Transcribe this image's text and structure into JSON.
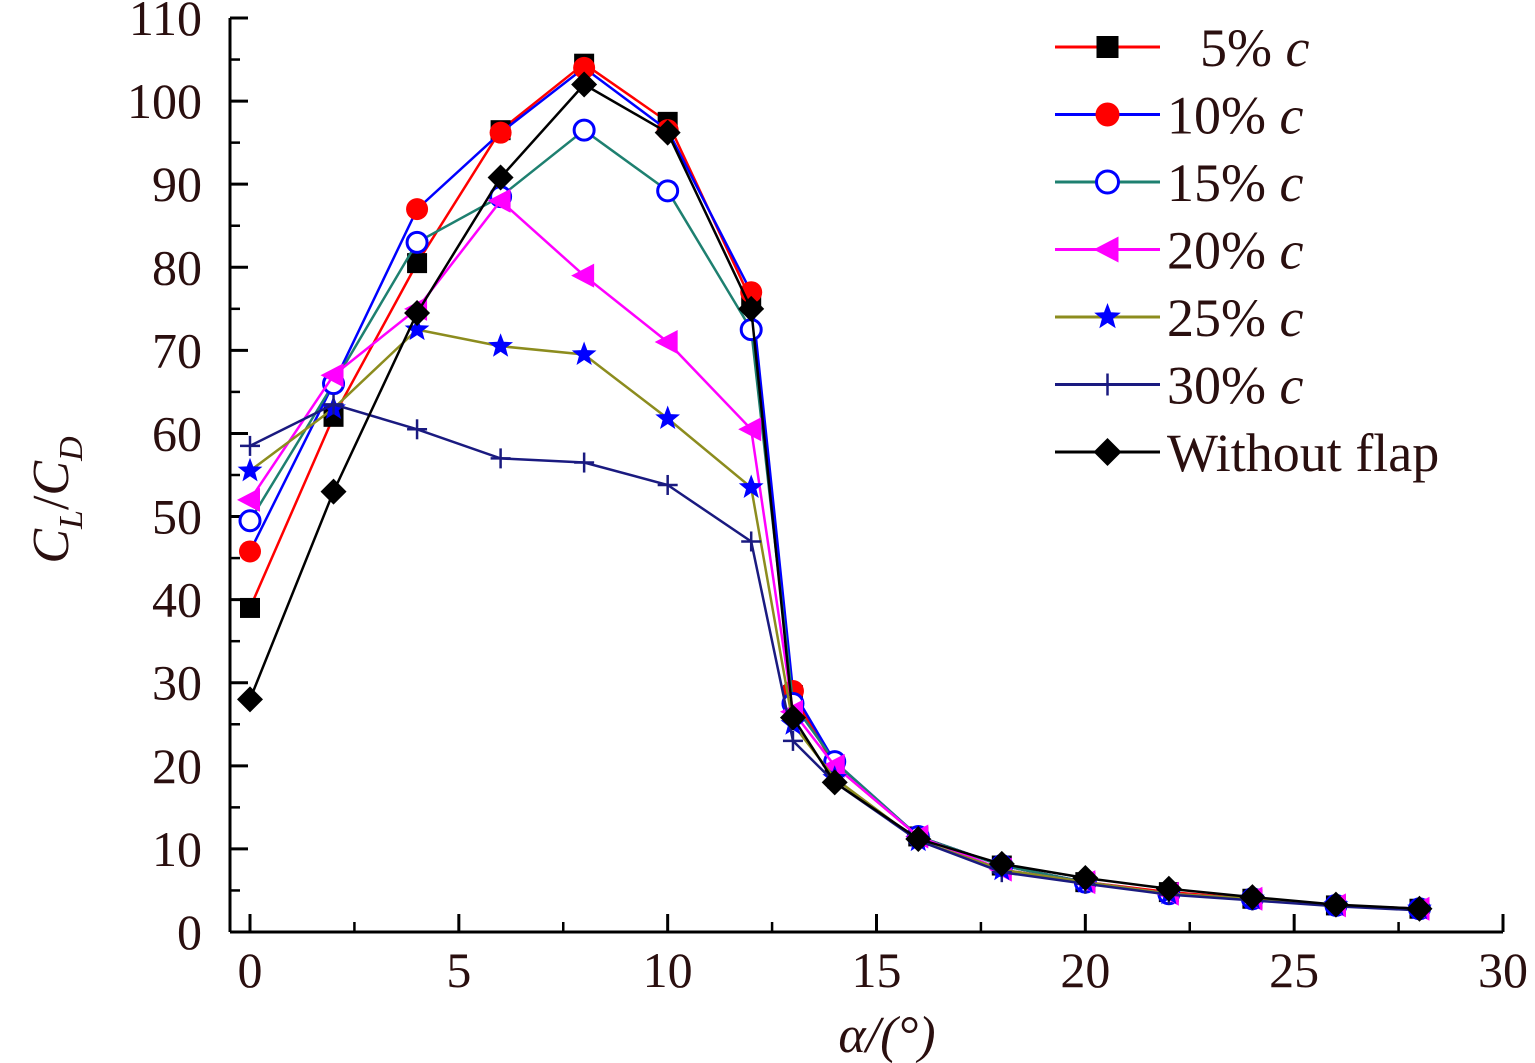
{
  "chart_data": {
    "type": "line",
    "title": "",
    "xlabel": "α/(°)",
    "ylabel": "C_L/C_D",
    "ylabel_parts": {
      "main1": "C",
      "sub1": "L",
      "slash": "/",
      "main2": "C",
      "sub2": "D"
    },
    "xlim": [
      0,
      30
    ],
    "ylim": [
      0,
      110
    ],
    "x_ticks": [
      0,
      5,
      10,
      15,
      20,
      25,
      30
    ],
    "y_ticks": [
      0,
      10,
      20,
      30,
      40,
      50,
      60,
      70,
      80,
      90,
      100,
      110
    ],
    "grid": false,
    "legend_position": "top-right",
    "x": [
      0,
      2,
      4,
      6,
      8,
      10,
      12,
      13,
      14,
      16,
      18,
      20,
      22,
      24,
      26,
      28
    ],
    "series": [
      {
        "name": "5%",
        "unit": "c",
        "color": "#ff0000",
        "marker": "square",
        "marker_color": "#000000",
        "values": [
          39,
          62,
          80.5,
          96.5,
          104.5,
          97.5,
          76,
          28.5,
          20,
          11.5,
          8,
          6,
          4.8,
          4,
          3.2,
          2.8
        ]
      },
      {
        "name": "10%",
        "unit": "c",
        "color": "#0000ff",
        "marker": "circle",
        "marker_color": "#ff0000",
        "values": [
          45.8,
          66,
          87,
          96.2,
          104,
          96.5,
          77,
          29,
          20.5,
          11.5,
          8,
          6,
          4.6,
          4,
          3.2,
          2.8
        ]
      },
      {
        "name": "15%",
        "unit": "c",
        "color": "#1e8070",
        "marker": "open-circle",
        "marker_color": "#0000ff",
        "values": [
          49.5,
          66,
          83,
          88.5,
          96.5,
          89.2,
          72.5,
          27.5,
          20.5,
          11.5,
          8,
          6,
          4.6,
          4,
          3.2,
          2.8
        ]
      },
      {
        "name": "20%",
        "unit": "c",
        "color": "#ff00ff",
        "marker": "triangle-left",
        "marker_color": "#ff00ff",
        "values": [
          52,
          67,
          75,
          88,
          79,
          71,
          60.5,
          26.5,
          20,
          11.5,
          7.5,
          6,
          4.6,
          4,
          3.2,
          2.8
        ]
      },
      {
        "name": "25%",
        "unit": "c",
        "color": "#8c8c1e",
        "marker": "star",
        "marker_color": "#0000ff",
        "values": [
          55.5,
          63,
          72.5,
          70.5,
          69.5,
          61.8,
          53.5,
          25,
          18.5,
          11,
          7.5,
          6,
          4.6,
          4,
          3.2,
          2.8
        ]
      },
      {
        "name": "30%",
        "unit": "c",
        "color": "#1a1a80",
        "marker": "plus",
        "marker_color": "#1a1a80",
        "values": [
          58.5,
          63.5,
          60.5,
          57,
          56.5,
          53.8,
          47,
          23,
          18,
          11,
          7.2,
          5.8,
          4.5,
          3.8,
          3.1,
          2.6
        ]
      },
      {
        "name": "Without flap",
        "unit": "",
        "color": "#000000",
        "marker": "diamond",
        "marker_color": "#000000",
        "values": [
          28,
          53,
          74.5,
          90.8,
          102,
          96.2,
          75,
          25.8,
          18,
          11.2,
          8.2,
          6.5,
          5.2,
          4.2,
          3.3,
          2.8
        ]
      }
    ]
  }
}
